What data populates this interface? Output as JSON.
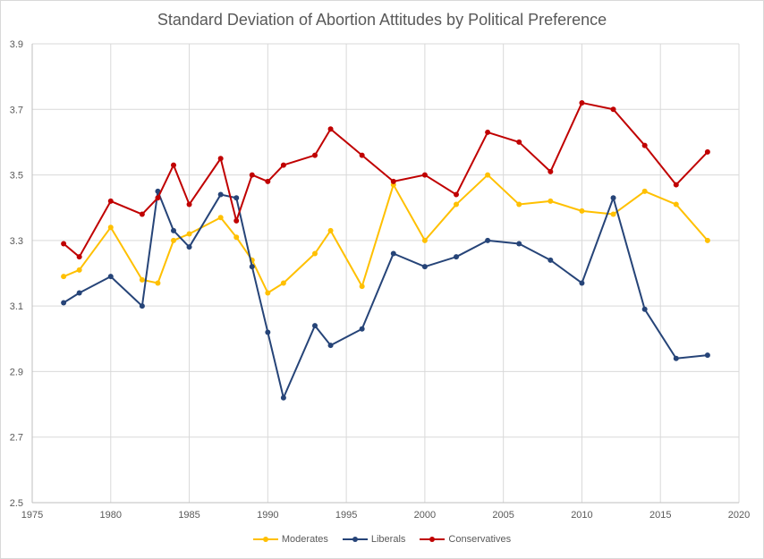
{
  "chart_data": {
    "type": "line",
    "title": "Standard Deviation of Abortion Attitudes by Political Preference",
    "xlabel": "",
    "ylabel": "",
    "xlim": [
      1975,
      2020
    ],
    "ylim": [
      2.5,
      3.9
    ],
    "xticks": [
      1975,
      1980,
      1985,
      1990,
      1995,
      2000,
      2005,
      2010,
      2015,
      2020
    ],
    "yticks": [
      2.5,
      2.7,
      2.9,
      3.1,
      3.3,
      3.5,
      3.7,
      3.9
    ],
    "ytick_labels": [
      "2.5",
      "2.7",
      "2.9",
      "3.1",
      "3.3",
      "3.5",
      "3.7",
      "3.9"
    ],
    "grid": true,
    "legend_position": "bottom",
    "series": [
      {
        "name": "Moderates",
        "color": "#ffc000",
        "x": [
          1977,
          1978,
          1980,
          1982,
          1983,
          1984,
          1985,
          1987,
          1988,
          1989,
          1990,
          1991,
          1993,
          1994,
          1996,
          1998,
          2000,
          2002,
          2004,
          2006,
          2008,
          2010,
          2012,
          2014,
          2016,
          2018
        ],
        "y": [
          3.19,
          3.21,
          3.34,
          3.18,
          3.17,
          3.3,
          3.32,
          3.37,
          3.31,
          3.24,
          3.14,
          3.17,
          3.26,
          3.33,
          3.16,
          3.47,
          3.3,
          3.41,
          3.5,
          3.41,
          3.42,
          3.39,
          3.38,
          3.45,
          3.41,
          3.3
        ]
      },
      {
        "name": "Liberals",
        "color": "#264478",
        "x": [
          1977,
          1978,
          1980,
          1982,
          1983,
          1984,
          1985,
          1987,
          1988,
          1989,
          1990,
          1991,
          1993,
          1994,
          1996,
          1998,
          2000,
          2002,
          2004,
          2006,
          2008,
          2010,
          2012,
          2014,
          2016,
          2018
        ],
        "y": [
          3.11,
          3.14,
          3.19,
          3.1,
          3.45,
          3.33,
          3.28,
          3.44,
          3.43,
          3.22,
          3.02,
          2.82,
          3.04,
          2.98,
          3.03,
          3.26,
          3.22,
          3.25,
          3.3,
          3.29,
          3.24,
          3.17,
          3.43,
          3.09,
          2.94,
          2.95
        ]
      },
      {
        "name": "Conservatives",
        "color": "#c00000",
        "x": [
          1977,
          1978,
          1980,
          1982,
          1983,
          1984,
          1985,
          1987,
          1988,
          1989,
          1990,
          1991,
          1993,
          1994,
          1996,
          1998,
          2000,
          2002,
          2004,
          2006,
          2008,
          2010,
          2012,
          2014,
          2016,
          2018
        ],
        "y": [
          3.29,
          3.25,
          3.42,
          3.38,
          3.43,
          3.53,
          3.41,
          3.55,
          3.36,
          3.5,
          3.48,
          3.53,
          3.56,
          3.64,
          3.56,
          3.48,
          3.5,
          3.44,
          3.63,
          3.6,
          3.51,
          3.72,
          3.7,
          3.59,
          3.47,
          3.57
        ]
      }
    ]
  }
}
